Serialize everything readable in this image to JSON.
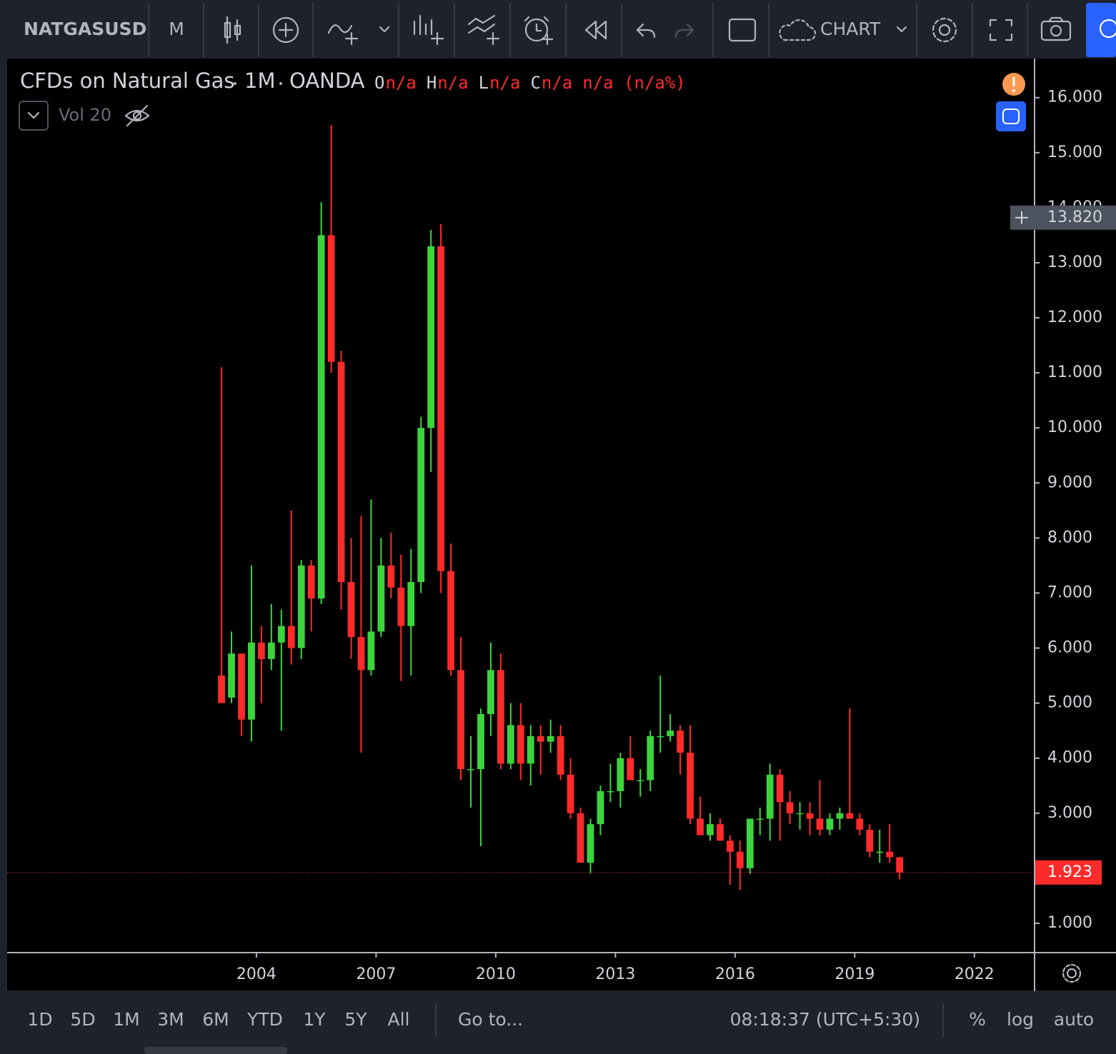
{
  "toolbar": {
    "symbol": "NATGASUSD",
    "interval": "M",
    "layout": "CHART"
  },
  "chart_data": {
    "type": "candlestick",
    "title": "CFDs on Natural Gas",
    "interval": "1M",
    "source": "OANDA",
    "legend": {
      "labels": [
        "O",
        "H",
        "L",
        "C"
      ],
      "values": [
        "n/a",
        "n/a",
        "n/a",
        "n/a"
      ],
      "change": "n/a (n/a%)"
    },
    "indicator": "Vol 20",
    "up_color": "#3cd43c",
    "down_color": "#ff2a2a",
    "grid": false,
    "x": [
      2003.125,
      2003.375,
      2003.625,
      2003.875,
      2004.125,
      2004.375,
      2004.625,
      2004.875,
      2005.125,
      2005.375,
      2005.625,
      2005.875,
      2006.125,
      2006.375,
      2006.625,
      2006.875,
      2007.125,
      2007.375,
      2007.625,
      2007.875,
      2008.125,
      2008.375,
      2008.625,
      2008.875,
      2009.125,
      2009.375,
      2009.625,
      2009.875,
      2010.125,
      2010.375,
      2010.625,
      2010.875,
      2011.125,
      2011.375,
      2011.625,
      2011.875,
      2012.125,
      2012.375,
      2012.625,
      2012.875,
      2013.125,
      2013.375,
      2013.625,
      2013.875,
      2014.125,
      2014.375,
      2014.625,
      2014.875,
      2015.125,
      2015.375,
      2015.625,
      2015.875,
      2016.125,
      2016.375,
      2016.625,
      2016.875,
      2017.125,
      2017.375,
      2017.625,
      2017.875,
      2018.125,
      2018.375,
      2018.625,
      2018.875,
      2019.125,
      2019.375,
      2019.625,
      2019.875,
      2020.125
    ],
    "open": [
      5.5,
      5.1,
      5.9,
      4.7,
      6.1,
      5.8,
      6.1,
      6.4,
      6.0,
      7.5,
      6.9,
      13.5,
      11.2,
      7.2,
      6.2,
      5.6,
      6.3,
      7.5,
      7.1,
      6.4,
      7.2,
      10.0,
      13.3,
      7.4,
      5.6,
      3.8,
      3.8,
      4.8,
      5.6,
      3.9,
      4.6,
      3.9,
      4.4,
      4.3,
      4.4,
      3.7,
      3.0,
      2.1,
      2.8,
      3.4,
      3.4,
      4.0,
      3.6,
      3.6,
      4.4,
      4.4,
      4.5,
      4.1,
      2.9,
      2.6,
      2.8,
      2.5,
      2.3,
      2.0,
      2.9,
      2.9,
      3.7,
      3.2,
      3.0,
      3.0,
      2.9,
      2.7,
      2.9,
      3.0,
      2.9,
      2.7,
      2.3,
      2.3,
      2.2
    ],
    "high": [
      11.1,
      6.3,
      5.9,
      7.5,
      6.4,
      6.8,
      6.7,
      8.5,
      7.6,
      7.6,
      14.1,
      15.5,
      11.4,
      8.0,
      8.4,
      8.7,
      8.0,
      8.1,
      7.7,
      7.8,
      10.2,
      13.6,
      13.7,
      7.9,
      6.2,
      4.4,
      4.9,
      6.1,
      5.9,
      5.0,
      5.0,
      4.6,
      4.6,
      4.7,
      4.6,
      4.0,
      3.1,
      2.9,
      3.5,
      3.9,
      4.1,
      4.4,
      3.8,
      4.5,
      5.5,
      4.8,
      4.6,
      4.6,
      3.3,
      3.0,
      2.9,
      2.6,
      2.5,
      2.9,
      3.1,
      3.9,
      3.8,
      3.4,
      3.2,
      3.2,
      3.6,
      3.0,
      3.1,
      4.9,
      3.0,
      2.8,
      2.7,
      2.8,
      2.2
    ],
    "low": [
      5.0,
      5.0,
      4.4,
      4.3,
      5.0,
      5.6,
      4.5,
      5.7,
      5.8,
      6.3,
      6.8,
      11.0,
      6.7,
      5.8,
      4.1,
      5.5,
      6.2,
      6.9,
      5.4,
      5.5,
      7.0,
      9.2,
      7.0,
      5.5,
      3.6,
      3.1,
      2.4,
      4.4,
      3.8,
      3.8,
      3.6,
      3.5,
      3.7,
      4.1,
      3.6,
      2.9,
      2.1,
      1.9,
      2.6,
      3.2,
      3.1,
      3.6,
      3.3,
      3.4,
      4.1,
      4.3,
      3.7,
      2.8,
      2.6,
      2.5,
      2.5,
      1.7,
      1.6,
      1.9,
      2.6,
      2.5,
      2.5,
      2.8,
      2.7,
      2.6,
      2.6,
      2.6,
      2.7,
      2.9,
      2.6,
      2.2,
      2.1,
      2.1,
      1.8
    ],
    "close": [
      5.0,
      5.9,
      4.7,
      6.1,
      5.8,
      6.1,
      6.4,
      6.0,
      7.5,
      6.9,
      13.5,
      11.2,
      7.2,
      6.2,
      5.6,
      6.3,
      7.5,
      7.1,
      6.4,
      7.2,
      10.0,
      13.3,
      7.4,
      5.6,
      3.8,
      3.8,
      4.8,
      5.6,
      3.9,
      4.6,
      3.9,
      4.4,
      4.3,
      4.4,
      3.7,
      3.0,
      2.1,
      2.8,
      3.4,
      3.4,
      4.0,
      3.6,
      3.6,
      4.4,
      4.4,
      4.5,
      4.1,
      2.9,
      2.6,
      2.8,
      2.5,
      2.3,
      2.0,
      2.9,
      2.9,
      3.7,
      3.2,
      3.0,
      3.0,
      2.9,
      2.7,
      2.9,
      3.0,
      2.9,
      2.7,
      2.3,
      2.3,
      2.2,
      1.923
    ],
    "xlim": [
      1997.75,
      2023.49
    ],
    "xticks": [
      2004,
      2007,
      2010,
      2013,
      2016,
      2019,
      2022
    ],
    "ylim": [
      0.48,
      16.71
    ],
    "yticks": [
      {
        "value": 1,
        "label": "1.000"
      },
      {
        "value": 2,
        "label": "2.000"
      },
      {
        "value": 3,
        "label": "3.000"
      },
      {
        "value": 4,
        "label": "4.000"
      },
      {
        "value": 5,
        "label": "5.000"
      },
      {
        "value": 6,
        "label": "6.000"
      },
      {
        "value": 7,
        "label": "7.000"
      },
      {
        "value": 8,
        "label": "8.000"
      },
      {
        "value": 9,
        "label": "9.000"
      },
      {
        "value": 10,
        "label": "10.000"
      },
      {
        "value": 11,
        "label": "11.000"
      },
      {
        "value": 12,
        "label": "12.000"
      },
      {
        "value": 13,
        "label": "13.000"
      },
      {
        "value": 14,
        "label": "14.000"
      },
      {
        "value": 15,
        "label": "15.000"
      },
      {
        "value": 16,
        "label": "16.000"
      }
    ],
    "last_price": {
      "value": 1.923,
      "label": "1.923"
    },
    "crosshair_price": {
      "value": 13.82,
      "label": "13.820"
    }
  },
  "bottom_bar": {
    "ranges": [
      "1D",
      "5D",
      "1M",
      "3M",
      "6M",
      "YTD",
      "1Y",
      "5Y",
      "All"
    ],
    "goto": "Go to...",
    "clock": "08:18:37 (UTC+5:30)",
    "percent": "%",
    "log": "log",
    "auto": "auto"
  }
}
